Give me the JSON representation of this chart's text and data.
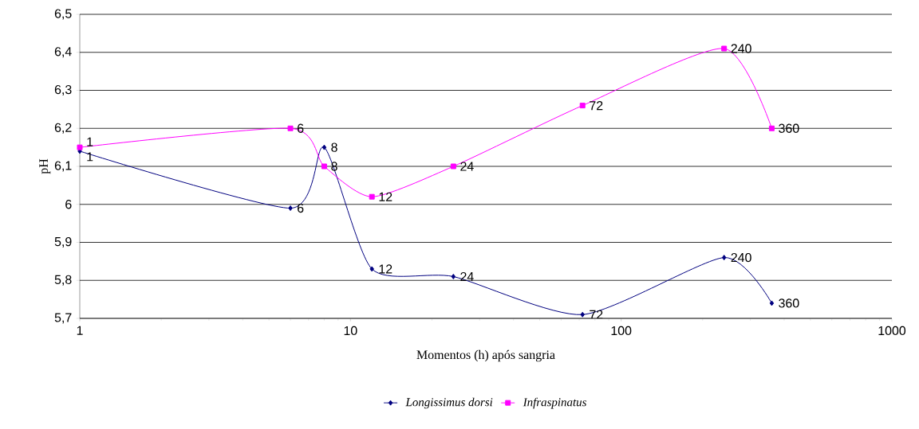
{
  "chart_data": {
    "type": "line",
    "xlabel": "Momentos (h) após sangria",
    "ylabel": "pH",
    "log": "x",
    "x": [
      1,
      6,
      8,
      12,
      24,
      72,
      240,
      360
    ],
    "series": [
      {
        "name": "Longissimus dorsi",
        "color": "#000080",
        "marker": "diamond",
        "values": [
          6.14,
          5.99,
          6.15,
          5.83,
          5.81,
          5.71,
          5.86,
          5.74
        ]
      },
      {
        "name": "Infraspinatus",
        "color": "#ff00ff",
        "marker": "square",
        "values": [
          6.15,
          6.2,
          6.1,
          6.02,
          6.1,
          6.26,
          6.41,
          6.2
        ]
      }
    ],
    "annotations": [
      {
        "text": "1",
        "x": 1,
        "y": 6.14
      },
      {
        "text": "6",
        "x": 6,
        "y": 5.99
      },
      {
        "text": "8",
        "x": 8,
        "y": 6.15
      },
      {
        "text": "12",
        "x": 12,
        "y": 5.83
      },
      {
        "text": "24",
        "x": 24,
        "y": 5.81
      },
      {
        "text": "72",
        "x": 72,
        "y": 5.71
      },
      {
        "text": "240",
        "x": 240,
        "y": 5.86
      },
      {
        "text": "360",
        "x": 360,
        "y": 5.74
      },
      {
        "text": "1",
        "x": 1,
        "y": 6.15
      },
      {
        "text": "6",
        "x": 6,
        "y": 6.2
      },
      {
        "text": "8",
        "x": 8,
        "y": 6.1
      },
      {
        "text": "12",
        "x": 12,
        "y": 6.02
      },
      {
        "text": "24",
        "x": 24,
        "y": 6.1
      },
      {
        "text": "72",
        "x": 72,
        "y": 6.26
      },
      {
        "text": "240",
        "x": 240,
        "y": 6.41
      },
      {
        "text": "360",
        "x": 360,
        "y": 6.2
      }
    ],
    "xlim": [
      1,
      1000
    ],
    "xticks": [
      1,
      10,
      100,
      1000
    ],
    "ylim": [
      5.7,
      6.5
    ],
    "yticks": [
      {
        "value": 5.7,
        "label": "5,7"
      },
      {
        "value": 5.8,
        "label": "5,8"
      },
      {
        "value": 5.9,
        "label": "5,9"
      },
      {
        "value": 6.0,
        "label": "6"
      },
      {
        "value": 6.1,
        "label": "6,1"
      },
      {
        "value": 6.2,
        "label": "6,2"
      },
      {
        "value": 6.3,
        "label": "6,3"
      },
      {
        "value": 6.4,
        "label": "6,4"
      },
      {
        "value": 6.5,
        "label": "6,5"
      }
    ],
    "grid": "y",
    "legend": "bottom",
    "line_style": "solid"
  }
}
